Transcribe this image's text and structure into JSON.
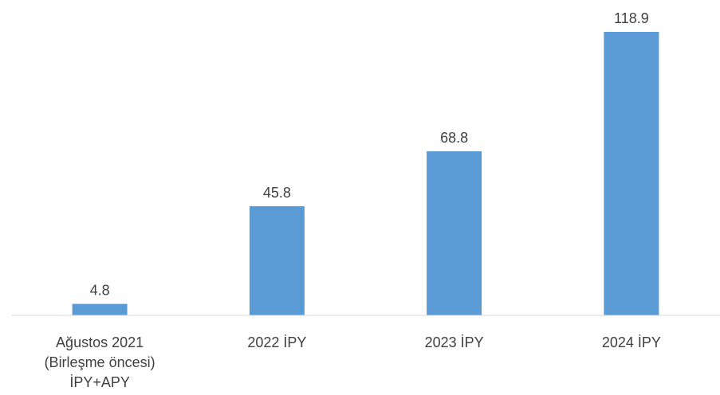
{
  "chart_data": {
    "type": "bar",
    "categories": [
      [
        "Ağustos 2021",
        "(Birleşme öncesi)",
        "İPY+APY"
      ],
      [
        "2022 İPY"
      ],
      [
        "2023 İPY"
      ],
      [
        "2024 İPY"
      ]
    ],
    "values": [
      4.8,
      45.8,
      68.8,
      118.9
    ],
    "value_labels": [
      "4.8",
      "45.8",
      "68.8",
      "118.9"
    ],
    "title": "",
    "xlabel": "",
    "ylabel": "",
    "ylim": [
      0,
      118.9
    ],
    "grid": false,
    "legend": "none",
    "bar_color": "#5b9bd5",
    "baseline_color": "#d9d9d9",
    "text_color": "#404040"
  }
}
